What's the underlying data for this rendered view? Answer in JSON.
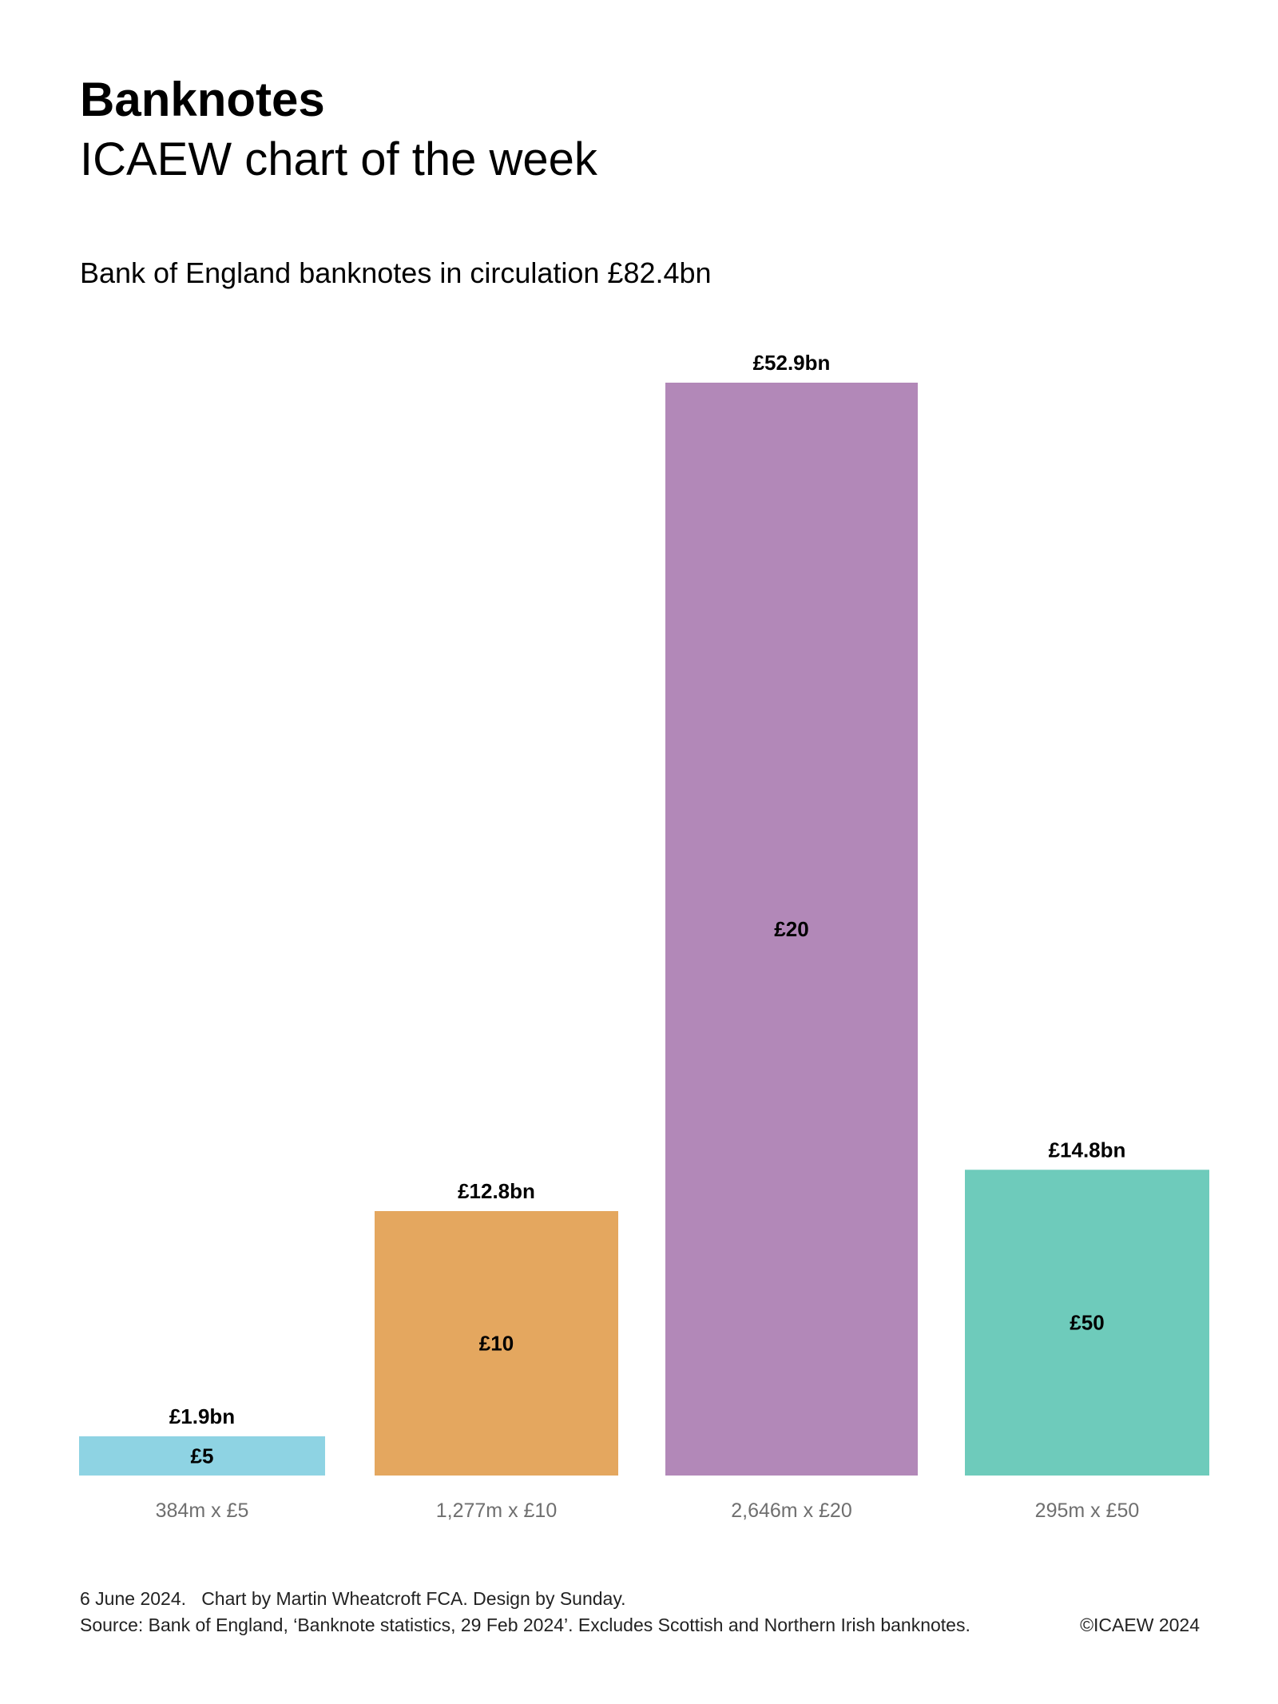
{
  "header": {
    "title": "Banknotes",
    "subtitle": "ICAEW chart of the week"
  },
  "footer": {
    "date": "6 June 2024.",
    "credits": "Chart by Martin Wheatcroft FCA. Design by Sunday.",
    "source": "Source: Bank of England, ‘Banknote statistics, 29 Feb 2024’. Excludes Scottish and Northern Irish banknotes.",
    "copyright": "©ICAEW 2024"
  },
  "chart_data": {
    "type": "bar",
    "title": "Bank of England banknotes in circulation £82.4bn",
    "xlabel": "",
    "ylabel": "",
    "ylim": [
      0,
      52.9
    ],
    "grid": false,
    "legend": "none",
    "categories": [
      "384m x £5",
      "1,277m x £10",
      "2,646m x £20",
      "295m x £50"
    ],
    "values": [
      1.9,
      12.8,
      52.9,
      14.8
    ],
    "value_labels": [
      "£1.9bn",
      "£12.8bn",
      "£52.9bn",
      "£14.8bn"
    ],
    "bar_labels": [
      "£5",
      "£10",
      "£20",
      "£50"
    ],
    "colors": [
      "#8ed3e3",
      "#e4a75f",
      "#b288b8",
      "#6ecbbb"
    ]
  }
}
